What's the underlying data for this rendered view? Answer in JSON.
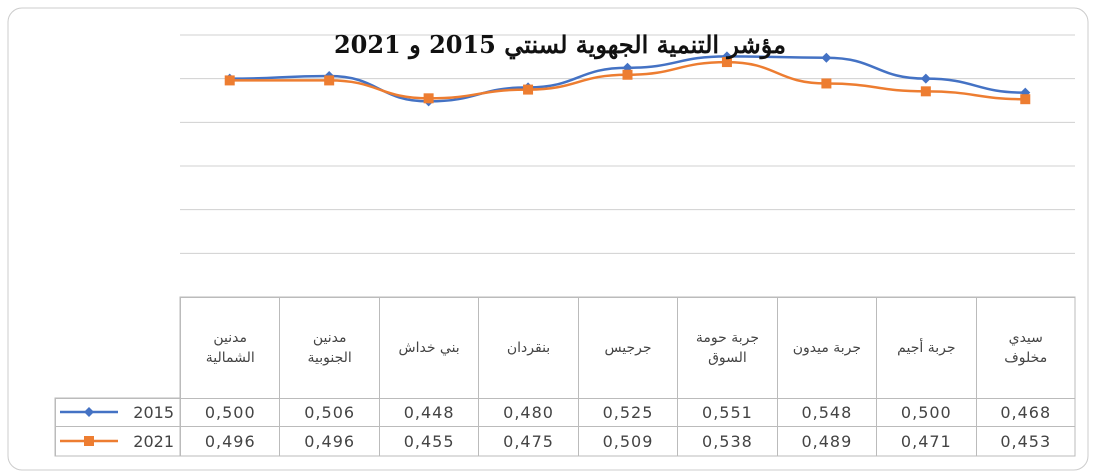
{
  "chart_data": {
    "type": "line",
    "title": "مؤشر التنمية الجهوية لسنتي 2015 و 2021",
    "categories": [
      "مدنين الشمالية",
      "مدنين الجنوبية",
      "بني خداش",
      "بنقردان",
      "جرجيس",
      "جربة حومة السوق",
      "جربة ميدون",
      "جربة أجيم",
      "سيدي مخلوف"
    ],
    "series": [
      {
        "name": "2015",
        "color": "#4472c4",
        "marker": "diamond",
        "values": [
          0.5,
          0.506,
          0.448,
          0.48,
          0.525,
          0.551,
          0.548,
          0.5,
          0.468
        ],
        "value_labels": [
          "0,500",
          "0,506",
          "0,448",
          "0,480",
          "0,525",
          "0,551",
          "0,548",
          "0,500",
          "0,468"
        ]
      },
      {
        "name": "2021",
        "color": "#ed7d31",
        "marker": "square",
        "values": [
          0.496,
          0.496,
          0.455,
          0.475,
          0.509,
          0.538,
          0.489,
          0.471,
          0.453
        ],
        "value_labels": [
          "0,496",
          "0,496",
          "0,455",
          "0,475",
          "0,509",
          "0,538",
          "0,489",
          "0,471",
          "0,453"
        ]
      }
    ],
    "ylim": [
      0,
      0.6
    ],
    "yticks": [
      0,
      0.1,
      0.2,
      0.3,
      0.4,
      0.5,
      0.6
    ],
    "grid": true
  }
}
